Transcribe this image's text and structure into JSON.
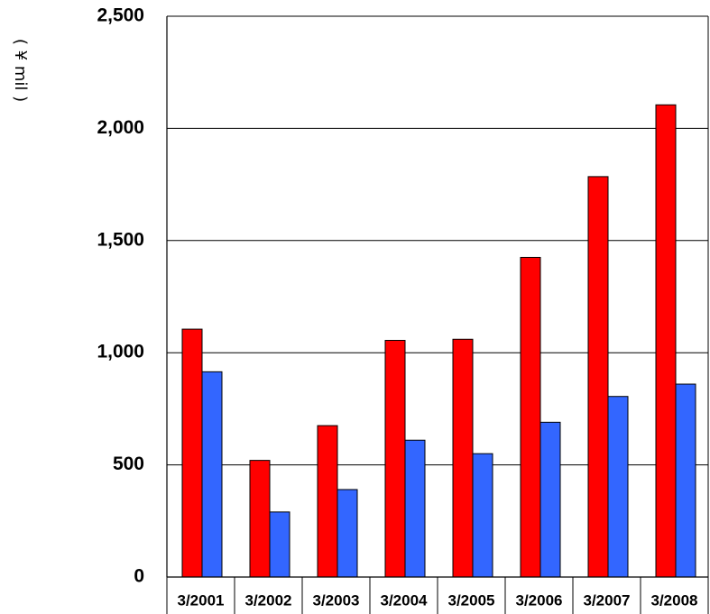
{
  "chart_data": {
    "type": "bar",
    "categories": [
      "3/2001",
      "3/2002",
      "3/2003",
      "3/2004",
      "3/2005",
      "3/2006",
      "3/2007",
      "3/2008"
    ],
    "series": [
      {
        "color": "#ff0000",
        "values": [
          1105,
          520,
          675,
          1055,
          1060,
          1425,
          1785,
          2105
        ]
      },
      {
        "color": "#3366ff",
        "values": [
          915,
          290,
          390,
          610,
          550,
          690,
          805,
          860
        ]
      }
    ],
    "yticks": [
      "0",
      "500",
      "1,000",
      "1,500",
      "2,000",
      "2,500"
    ],
    "ytick_values": [
      0,
      500,
      1000,
      1500,
      2000,
      2500
    ],
    "ylabel": "( ¥ mil )",
    "ylim": [
      0,
      2500
    ],
    "grid": true
  }
}
